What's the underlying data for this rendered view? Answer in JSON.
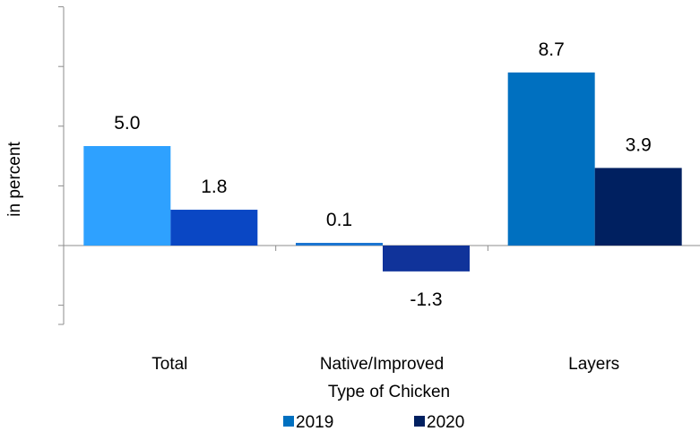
{
  "chart_data": {
    "type": "bar",
    "categories": [
      "Total",
      "Native/Improved",
      "Layers"
    ],
    "series": [
      {
        "name": "2019",
        "values": [
          5.0,
          0.1,
          8.7
        ],
        "bar_colors": [
          "#2ea1ff",
          "#1b75d1",
          "#0070c0"
        ]
      },
      {
        "name": "2020",
        "values": [
          1.8,
          -1.3,
          3.9
        ],
        "bar_colors": [
          "#0a47c4",
          "#10339a",
          "#002060"
        ]
      }
    ],
    "data_labels": {
      "2019": [
        "5.0",
        "0.1",
        "8.7"
      ],
      "2020": [
        "1.8",
        "-1.3",
        "3.9"
      ]
    },
    "title": "",
    "xlabel": "Type of Chicken",
    "ylabel": "in percent",
    "ylim": [
      -4,
      12
    ],
    "grid": false,
    "legend": {
      "position": "bottom",
      "items": [
        {
          "label": "2019",
          "color": "#0070c0"
        },
        {
          "label": "2020",
          "color": "#002060"
        }
      ]
    }
  }
}
